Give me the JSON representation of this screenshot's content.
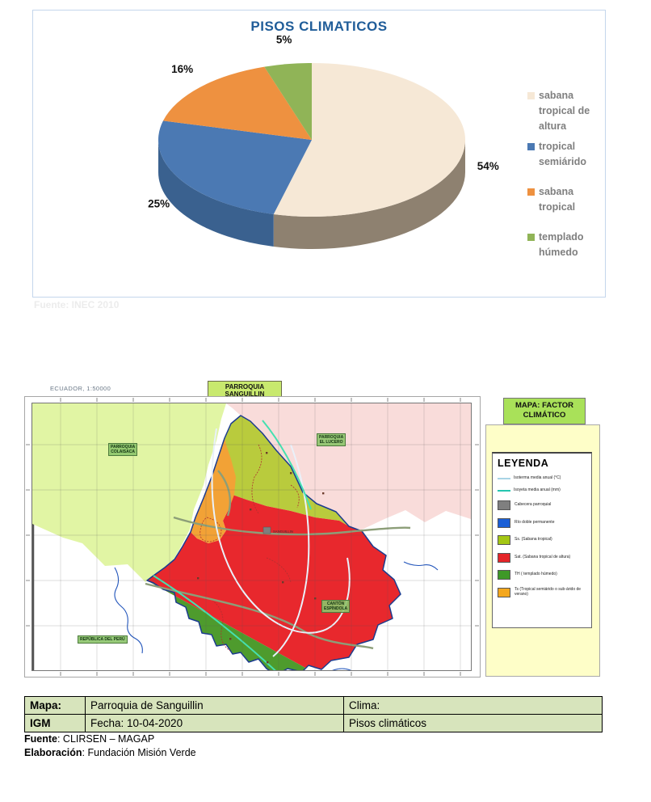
{
  "chart_data": {
    "type": "pie",
    "style": "3d",
    "title": "PISOS CLIMATICOS",
    "title_color": "#205D99",
    "categories": [
      "sabana tropical de altura",
      "tropical semiárido",
      "sabana tropical",
      "templado húmedo"
    ],
    "values": [
      54,
      25,
      16,
      5
    ],
    "unit": "%",
    "colors": [
      "#F6E8D6",
      "#4B79B3",
      "#EE9140",
      "#90B457"
    ],
    "side_colors": [
      "#8E8170",
      "#3A618F",
      "#B8722E",
      "#6E8A3C"
    ],
    "legend_position": "right",
    "legend_text_color": "#7F7F7F"
  },
  "chart": {
    "faint_source_text": "Fuente: INEC 2010"
  },
  "map_figure": {
    "scale_note": "ECUADOR, 1:50000",
    "map_title": "PARROQUIA SANGUILLIN",
    "corner_title": "MAPA: FACTOR CLIMÁTICO",
    "town_label": "SANGUILLIN",
    "neighbors": {
      "west": "PARROQUIA\nCOLAISACA",
      "northeast": "PARROQUIA\nEL LUCERO",
      "southeast": "CANTÓN\nESPÍNDOLA",
      "southwest": "REPÚBLICA DEL PERÚ"
    },
    "legend": {
      "title": "LEYENDA",
      "items": [
        {
          "swatch": "line",
          "color": "#A8D4E5",
          "label": "Isoterma media anual (°C)"
        },
        {
          "swatch": "line",
          "color": "#26C6B0",
          "label": "Isoyeta media anual (mm)"
        },
        {
          "swatch": "box",
          "color": "#7F7F7F",
          "label": "Cabecera parroquial"
        },
        {
          "swatch": "box",
          "color": "#1A5FD6",
          "label": "Río doble permanente"
        },
        {
          "swatch": "box",
          "color": "#A4C714",
          "label": "Ss. (Sabana tropical)"
        },
        {
          "swatch": "box",
          "color": "#E52528",
          "label": "Sat. (Sabana tropical de altura)"
        },
        {
          "swatch": "box",
          "color": "#3E9927",
          "label": "TH ( templado húmedo)"
        },
        {
          "swatch": "box",
          "color": "#F4A71D",
          "label": "Ts (Tropical semiárido o sub-árido de verano)"
        }
      ]
    }
  },
  "info_table": {
    "r1c1": "Mapa:",
    "r1c2": "Parroquia de Sanguillin",
    "r1c3": "Clima:",
    "r2c1": "IGM",
    "r2c2": "Fecha: 10-04-2020",
    "r2c3": "Pisos climáticos"
  },
  "footer": {
    "fuente_label": "Fuente",
    "fuente_value": ": CLIRSEN – MAGAP",
    "elaboracion_label": "Elaboración",
    "elaboracion_value": ": Fundación Misión Verde"
  }
}
